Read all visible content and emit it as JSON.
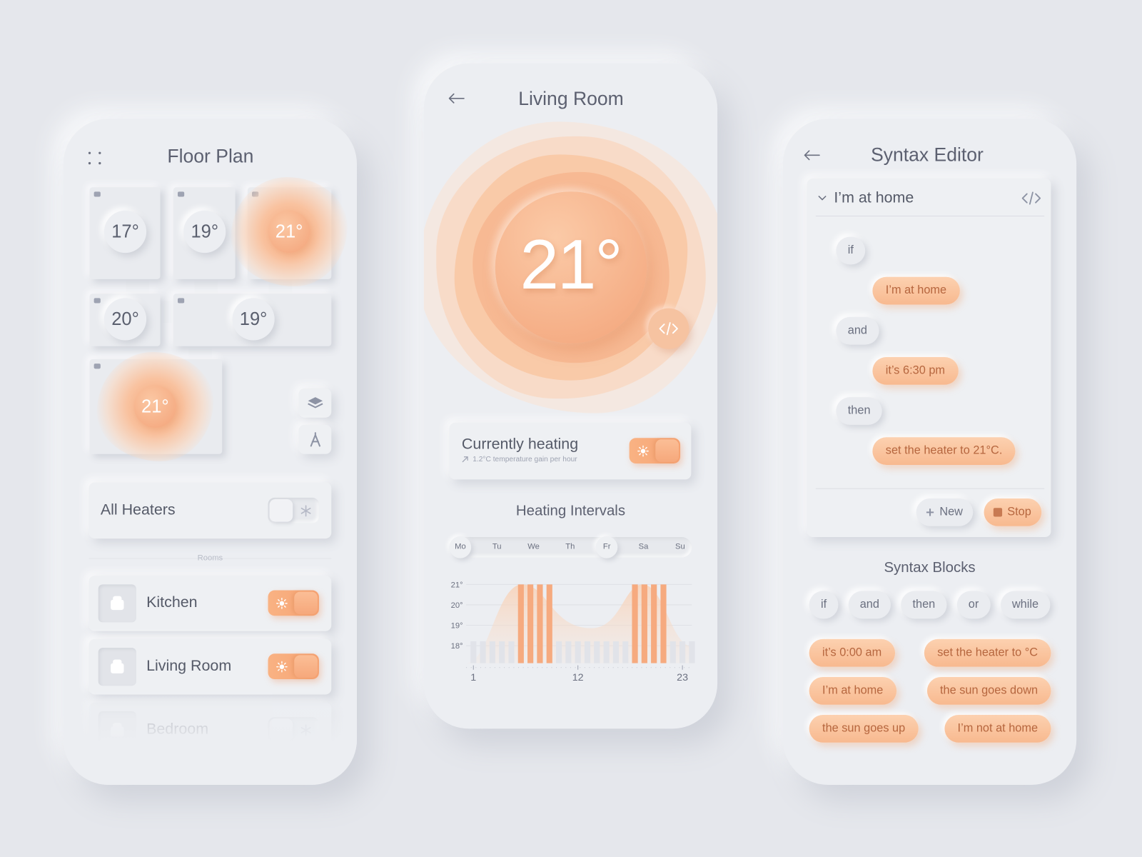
{
  "floor_plan": {
    "title": "Floor Plan",
    "rooms": [
      {
        "temperature": "17°",
        "heated": false
      },
      {
        "temperature": "19°",
        "heated": false
      },
      {
        "temperature": "21°",
        "heated": true
      },
      {
        "temperature": "20°",
        "heated": false
      },
      {
        "temperature": "19°",
        "heated": false
      },
      {
        "temperature": "21°",
        "heated": true
      }
    ],
    "all_heaters": {
      "label": "All Heaters",
      "on": false
    },
    "rooms_label": "Rooms",
    "room_list": [
      {
        "name": "Kitchen",
        "on": true
      },
      {
        "name": "Living Room",
        "on": true
      },
      {
        "name": "Bedroom",
        "on": false
      }
    ]
  },
  "living_room": {
    "title": "Living Room",
    "temperature": "21°",
    "status": "Currently heating",
    "status_note": "1.2°C temperature gain per hour",
    "heating_on": true,
    "intervals": {
      "title": "Heating Intervals",
      "days": [
        "Mo",
        "Tu",
        "We",
        "Th",
        "Fr",
        "Sa",
        "Su"
      ],
      "selected_days": [
        0,
        4
      ],
      "yticks": [
        {
          "value": 21,
          "label": "21°"
        },
        {
          "value": 20,
          "label": "20°"
        },
        {
          "value": 19,
          "label": "19°"
        },
        {
          "value": 18,
          "label": "18°"
        }
      ],
      "xticks": [
        1,
        12,
        23
      ],
      "active_hours": [
        6,
        7,
        8,
        9,
        18,
        19,
        20,
        21
      ]
    }
  },
  "syntax_editor": {
    "title": "Syntax Editor",
    "rule": "I’m at home",
    "lines": [
      {
        "text": "if",
        "kind": "keyword"
      },
      {
        "text": "I’m at home",
        "kind": "condition"
      },
      {
        "text": "and",
        "kind": "keyword"
      },
      {
        "text": "it’s 6:30 pm",
        "kind": "condition"
      },
      {
        "text": "then",
        "kind": "keyword"
      },
      {
        "text": "set the heater to 21°C.",
        "kind": "condition"
      }
    ],
    "new_button": "New",
    "stop_button": "Stop",
    "blocks_title": "Syntax Blocks",
    "keywords": [
      "if",
      "and",
      "then",
      "or",
      "while"
    ],
    "conditions": [
      "it’s 0:00 am",
      "set the heater to °C",
      "I’m at home",
      "the sun goes down",
      "the sun goes up",
      "I’m not at home"
    ]
  }
}
